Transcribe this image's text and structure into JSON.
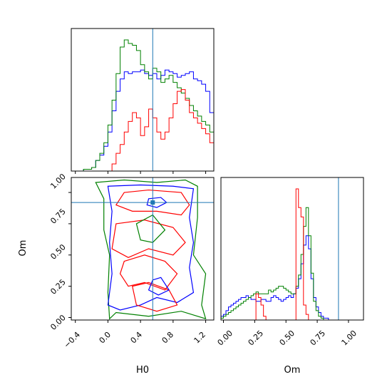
{
  "chart_data": {
    "type": "corner",
    "parameters": [
      "H0",
      "Om"
    ],
    "truth": {
      "H0": 0.55,
      "Om": 0.92
    },
    "series": [
      {
        "color": "#0000ff"
      },
      {
        "color": "#008000"
      },
      {
        "color": "#ff0000"
      }
    ],
    "truth_color": "#1f77b4",
    "axes": {
      "H0": {
        "label": "H0",
        "range": [
          -0.45,
          1.3
        ],
        "ticks": [
          -0.4,
          0.0,
          0.4,
          0.8,
          1.2
        ],
        "tick_labels": [
          "−0.4",
          "0.0",
          "0.4",
          "0.8",
          "1.2"
        ]
      },
      "Om": {
        "label": "Om",
        "range": [
          -0.02,
          1.12
        ],
        "ticks": [
          0.0,
          0.25,
          0.5,
          0.75,
          1.0
        ],
        "tick_labels": [
          "0.00",
          "0.25",
          "0.50",
          "0.75",
          "1.00"
        ]
      }
    },
    "hist_H0": {
      "bin_start": -0.3,
      "bin_width": 0.05,
      "blue": [
        1,
        1,
        2,
        6,
        9,
        14,
        22,
        34,
        45,
        52,
        56,
        55,
        56,
        56,
        57,
        55,
        54,
        55,
        52,
        54,
        57,
        56,
        55,
        53,
        54,
        55,
        56,
        52,
        51,
        49,
        45,
        33,
        24,
        14,
        8,
        4,
        1,
        0,
        0,
        0
      ],
      "green": [
        1,
        1,
        2,
        6,
        10,
        16,
        26,
        40,
        55,
        70,
        74,
        72,
        71,
        68,
        60,
        56,
        52,
        58,
        56,
        50,
        52,
        54,
        50,
        47,
        44,
        41,
        37,
        34,
        31,
        28,
        26,
        22,
        14,
        8,
        4,
        1,
        0,
        0,
        0,
        0
      ],
      "red": [
        0,
        0,
        0,
        0,
        0,
        0,
        0,
        4,
        10,
        15,
        22,
        28,
        33,
        30,
        20,
        25,
        35,
        30,
        22,
        18,
        22,
        30,
        38,
        45,
        46,
        40,
        33,
        30,
        27,
        24,
        21,
        16,
        10,
        5,
        2,
        1,
        0,
        0,
        0,
        0
      ]
    },
    "hist_Om": {
      "bin_start": -0.02,
      "bin_width": 0.02,
      "blue": [
        2,
        3,
        5,
        7,
        8,
        9,
        10,
        11,
        12,
        12,
        13,
        12,
        11,
        11,
        10,
        10,
        11,
        11,
        10,
        10,
        12,
        13,
        12,
        11,
        10,
        11,
        12,
        13,
        12,
        14,
        17,
        22,
        30,
        40,
        45,
        38,
        22,
        12,
        7,
        4,
        2,
        1,
        1,
        0,
        0,
        0,
        0,
        0,
        0,
        0,
        0,
        0,
        0,
        0,
        0,
        0,
        0
      ],
      "green": [
        1,
        2,
        3,
        4,
        5,
        6,
        7,
        8,
        9,
        10,
        11,
        12,
        13,
        14,
        15,
        14,
        14,
        14,
        14,
        16,
        15,
        16,
        17,
        18,
        18,
        17,
        16,
        15,
        14,
        14,
        18,
        24,
        35,
        50,
        60,
        45,
        25,
        10,
        5,
        2,
        1,
        0,
        0,
        0,
        0,
        0,
        0,
        0,
        0,
        0,
        0,
        0,
        0,
        0,
        0,
        0,
        0
      ],
      "red": [
        0,
        0,
        0,
        0,
        0,
        0,
        0,
        0,
        0,
        0,
        0,
        0,
        17,
        15,
        10,
        3,
        0,
        0,
        0,
        0,
        0,
        0,
        0,
        0,
        0,
        0,
        0,
        0,
        1,
        1,
        1,
        2,
        3,
        4,
        5,
        6,
        7,
        8,
        9,
        10,
        11,
        12,
        13,
        14,
        15,
        14,
        13,
        12,
        11,
        10,
        9,
        8,
        7,
        6,
        5,
        4,
        3
      ]
    },
    "hist_Om_red": {
      "bin_start": -0.02,
      "bin_width": 0.02,
      "values": [
        0,
        0,
        0,
        0,
        0,
        0,
        0,
        0,
        0,
        0,
        0,
        0,
        0,
        0,
        14,
        12,
        8,
        2,
        0,
        0,
        0,
        0,
        0,
        0,
        0,
        0,
        0,
        0,
        0,
        0,
        70,
        60,
        55,
        8,
        3,
        0,
        0,
        0,
        0,
        0,
        0,
        0,
        0,
        0,
        0,
        0,
        0,
        0,
        0,
        0,
        0,
        0,
        0,
        0,
        0,
        0,
        0
      ]
    }
  }
}
